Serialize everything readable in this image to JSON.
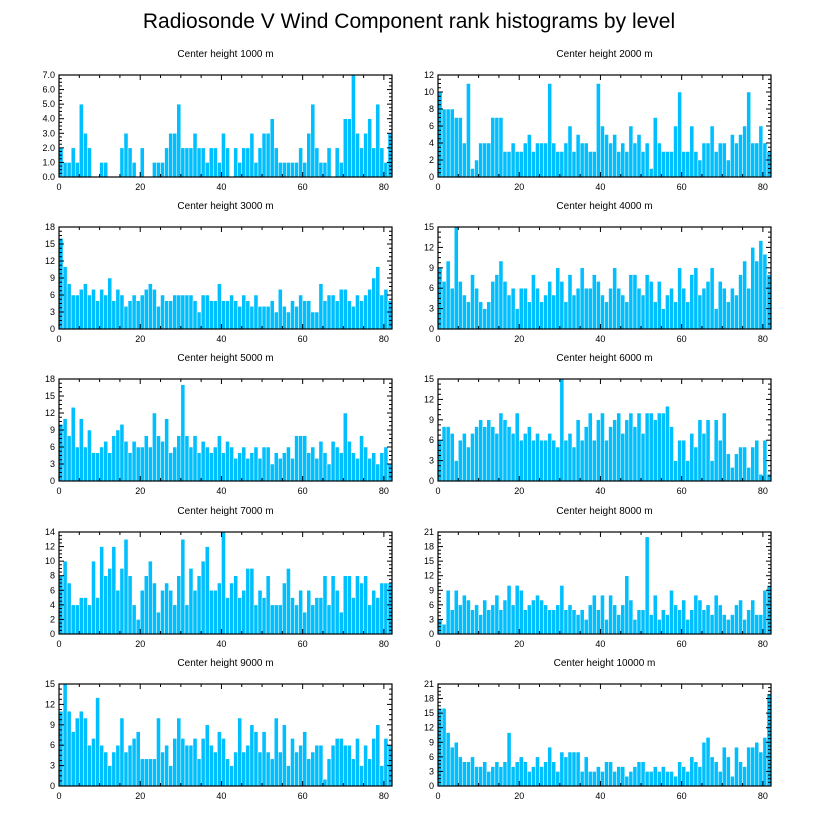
{
  "figure": {
    "title": "Radiosonde V Wind Component rank histograms by level",
    "bar_color": "#00bfff",
    "bar_edge_color": "#ffffff"
  },
  "chart_data": [
    {
      "type": "bar",
      "title": "Center height 1000 m",
      "xlim": [
        0,
        82
      ],
      "ylim": [
        0,
        7
      ],
      "xticks": [
        0,
        20,
        40,
        60,
        80
      ],
      "yticks": [
        0,
        1,
        2,
        3,
        4,
        5,
        6,
        7
      ],
      "ytick_labels": [
        "0.0",
        "1.0",
        "2.0",
        "3.0",
        "4.0",
        "5.0",
        "6.0",
        "7.0"
      ],
      "values": [
        2,
        1,
        1,
        2,
        1,
        5,
        3,
        2,
        0,
        0,
        1,
        1,
        0,
        0,
        0,
        2,
        3,
        2,
        1,
        0,
        2,
        0,
        0,
        1,
        1,
        1,
        2,
        3,
        3,
        5,
        2,
        2,
        2,
        3,
        2,
        2,
        1,
        2,
        2,
        1,
        3,
        2,
        0,
        2,
        1,
        2,
        2,
        3,
        1,
        2,
        3,
        3,
        4,
        2,
        1,
        1,
        1,
        1,
        1,
        2,
        1,
        3,
        5,
        2,
        1,
        1,
        2,
        0,
        2,
        1,
        4,
        4,
        7,
        3,
        2,
        3,
        4,
        2,
        5,
        2,
        1,
        3
      ]
    },
    {
      "type": "bar",
      "title": "Center height 2000 m",
      "xlim": [
        0,
        82
      ],
      "ylim": [
        0,
        12
      ],
      "xticks": [
        0,
        20,
        40,
        60,
        80
      ],
      "yticks": [
        0,
        2,
        4,
        6,
        8,
        10,
        12
      ],
      "ytick_labels": [
        "0",
        "2",
        "4",
        "6",
        "8",
        "10",
        "12"
      ],
      "values": [
        10,
        8,
        8,
        8,
        7,
        7,
        4,
        11,
        1,
        2,
        4,
        4,
        4,
        7,
        7,
        7,
        3,
        3,
        4,
        3,
        3,
        4,
        5,
        3,
        4,
        4,
        4,
        11,
        4,
        3,
        3,
        4,
        6,
        3,
        5,
        4,
        4,
        3,
        3,
        11,
        6,
        5,
        4,
        5,
        3,
        4,
        3,
        6,
        4,
        5,
        3,
        4,
        1,
        7,
        4,
        3,
        3,
        3,
        6,
        10,
        3,
        3,
        6,
        3,
        2,
        4,
        4,
        6,
        3,
        4,
        4,
        2,
        5,
        4,
        5,
        6,
        10,
        4,
        4,
        6,
        4,
        3
      ]
    },
    {
      "type": "bar",
      "title": "Center height 3000 m",
      "xlim": [
        0,
        82
      ],
      "ylim": [
        0,
        18
      ],
      "xticks": [
        0,
        20,
        40,
        60,
        80
      ],
      "yticks": [
        0,
        3,
        6,
        9,
        12,
        15,
        18
      ],
      "ytick_labels": [
        "0",
        "3",
        "6",
        "9",
        "12",
        "15",
        "18"
      ],
      "values": [
        16,
        11,
        8,
        6,
        6,
        7,
        8,
        6,
        7,
        5,
        7,
        6,
        9,
        5,
        7,
        6,
        4,
        5,
        6,
        5,
        6,
        7,
        8,
        7,
        4,
        6,
        5,
        5,
        6,
        6,
        6,
        6,
        6,
        5,
        3,
        6,
        6,
        5,
        5,
        8,
        5,
        5,
        6,
        5,
        4,
        6,
        5,
        4,
        6,
        4,
        4,
        4,
        5,
        3,
        7,
        4,
        3,
        5,
        4,
        6,
        5,
        5,
        3,
        3,
        8,
        5,
        6,
        6,
        5,
        7,
        7,
        5,
        4,
        6,
        5,
        6,
        7,
        9,
        11,
        6,
        7,
        5
      ]
    },
    {
      "type": "bar",
      "title": "Center height 4000 m",
      "xlim": [
        0,
        82
      ],
      "ylim": [
        0,
        15
      ],
      "xticks": [
        0,
        20,
        40,
        60,
        80
      ],
      "yticks": [
        0,
        3,
        6,
        9,
        12,
        15
      ],
      "ytick_labels": [
        "0",
        "3",
        "6",
        "9",
        "12",
        "15"
      ],
      "values": [
        9,
        7,
        10,
        6,
        15,
        7,
        5,
        4,
        8,
        6,
        4,
        3,
        4,
        7,
        8,
        10,
        7,
        5,
        6,
        3,
        6,
        6,
        4,
        8,
        6,
        4,
        5,
        7,
        5,
        9,
        7,
        4,
        8,
        5,
        6,
        9,
        6,
        6,
        8,
        7,
        5,
        4,
        6,
        9,
        6,
        5,
        4,
        8,
        8,
        6,
        5,
        8,
        7,
        4,
        7,
        3,
        5,
        6,
        4,
        9,
        6,
        4,
        8,
        9,
        5,
        6,
        7,
        9,
        3,
        7,
        6,
        4,
        6,
        5,
        8,
        10,
        6,
        12,
        10,
        13,
        11,
        8
      ]
    },
    {
      "type": "bar",
      "title": "Center height 5000 m",
      "xlim": [
        0,
        82
      ],
      "ylim": [
        0,
        18
      ],
      "xticks": [
        0,
        20,
        40,
        60,
        80
      ],
      "yticks": [
        0,
        3,
        6,
        9,
        12,
        15,
        18
      ],
      "ytick_labels": [
        "0",
        "3",
        "6",
        "9",
        "12",
        "15",
        "18"
      ],
      "values": [
        10,
        11,
        8,
        13,
        6,
        11,
        6,
        9,
        5,
        5,
        6,
        7,
        5,
        8,
        9,
        10,
        7,
        5,
        7,
        6,
        6,
        8,
        6,
        12,
        8,
        7,
        11,
        5,
        6,
        8,
        17,
        8,
        6,
        8,
        5,
        7,
        6,
        5,
        6,
        8,
        5,
        7,
        6,
        4,
        5,
        6,
        4,
        5,
        6,
        4,
        6,
        6,
        3,
        5,
        4,
        5,
        6,
        4,
        8,
        8,
        8,
        5,
        6,
        4,
        7,
        5,
        3,
        7,
        6,
        5,
        12,
        7,
        5,
        4,
        8,
        6,
        4,
        5,
        3,
        5,
        6,
        3
      ]
    },
    {
      "type": "bar",
      "title": "Center height 6000 m",
      "xlim": [
        0,
        82
      ],
      "ylim": [
        0,
        15
      ],
      "xticks": [
        0,
        20,
        40,
        60,
        80
      ],
      "yticks": [
        0,
        3,
        6,
        9,
        12,
        15
      ],
      "ytick_labels": [
        "0",
        "3",
        "6",
        "9",
        "12",
        "15"
      ],
      "values": [
        6,
        8,
        8,
        7,
        3,
        6,
        7,
        5,
        7,
        8,
        9,
        8,
        9,
        8,
        7,
        10,
        9,
        8,
        7,
        10,
        6,
        7,
        8,
        6,
        7,
        6,
        6,
        7,
        6,
        5,
        15,
        6,
        7,
        5,
        9,
        6,
        8,
        10,
        6,
        9,
        10,
        6,
        8,
        9,
        10,
        7,
        9,
        10,
        8,
        10,
        7,
        10,
        10,
        9,
        10,
        10,
        11,
        8,
        3,
        6,
        6,
        3,
        7,
        5,
        9,
        7,
        9,
        3,
        9,
        6,
        10,
        4,
        2,
        4,
        5,
        5,
        2,
        5,
        6,
        1,
        6,
        1
      ]
    },
    {
      "type": "bar",
      "title": "Center height 7000 m",
      "xlim": [
        0,
        82
      ],
      "ylim": [
        0,
        14
      ],
      "xticks": [
        0,
        20,
        40,
        60,
        80
      ],
      "yticks": [
        0,
        2,
        4,
        6,
        8,
        10,
        12,
        14
      ],
      "ytick_labels": [
        "0",
        "2",
        "4",
        "6",
        "8",
        "10",
        "12",
        "14"
      ],
      "values": [
        8,
        10,
        7,
        4,
        4,
        5,
        5,
        4,
        10,
        5,
        12,
        8,
        9,
        12,
        6,
        9,
        13,
        8,
        4,
        2,
        6,
        8,
        10,
        7,
        3,
        6,
        7,
        6,
        4,
        8,
        13,
        4,
        9,
        6,
        8,
        10,
        12,
        6,
        6,
        7,
        14,
        5,
        7,
        8,
        5,
        6,
        9,
        9,
        4,
        6,
        5,
        8,
        4,
        4,
        4,
        7,
        9,
        5,
        4,
        6,
        3,
        6,
        4,
        5,
        5,
        8,
        4,
        8,
        6,
        3,
        8,
        8,
        5,
        8,
        7,
        8,
        4,
        6,
        5,
        7,
        7,
        7
      ]
    },
    {
      "type": "bar",
      "title": "Center height 8000 m",
      "xlim": [
        0,
        82
      ],
      "ylim": [
        0,
        21
      ],
      "xticks": [
        0,
        20,
        40,
        60,
        80
      ],
      "yticks": [
        0,
        3,
        6,
        9,
        12,
        15,
        18,
        21
      ],
      "ytick_labels": [
        "0",
        "3",
        "6",
        "9",
        "12",
        "15",
        "18",
        "21"
      ],
      "values": [
        3,
        2,
        9,
        5,
        9,
        6,
        8,
        7,
        5,
        6,
        4,
        7,
        5,
        6,
        8,
        5,
        7,
        10,
        6,
        10,
        9,
        5,
        6,
        7,
        8,
        7,
        6,
        5,
        5,
        6,
        10,
        5,
        6,
        5,
        4,
        5,
        3,
        6,
        8,
        5,
        8,
        3,
        8,
        6,
        4,
        6,
        12,
        7,
        3,
        5,
        5,
        20,
        4,
        8,
        3,
        5,
        4,
        9,
        6,
        5,
        7,
        3,
        5,
        8,
        7,
        5,
        6,
        4,
        8,
        6,
        4,
        3,
        4,
        6,
        7,
        3,
        5,
        7,
        4,
        4,
        9,
        10
      ]
    },
    {
      "type": "bar",
      "title": "Center height 9000 m",
      "xlim": [
        0,
        82
      ],
      "ylim": [
        0,
        15
      ],
      "xticks": [
        0,
        20,
        40,
        60,
        80
      ],
      "yticks": [
        0,
        3,
        6,
        9,
        12,
        15
      ],
      "ytick_labels": [
        "0",
        "3",
        "6",
        "9",
        "12",
        "15"
      ],
      "values": [
        11,
        15,
        11,
        8,
        10,
        11,
        10,
        6,
        7,
        13,
        6,
        5,
        3,
        5,
        6,
        10,
        5,
        6,
        7,
        8,
        4,
        4,
        4,
        4,
        10,
        5,
        6,
        3,
        7,
        10,
        7,
        6,
        6,
        7,
        4,
        7,
        9,
        6,
        5,
        8,
        7,
        4,
        3,
        5,
        10,
        5,
        6,
        9,
        8,
        5,
        8,
        5,
        4,
        10,
        5,
        9,
        3,
        7,
        5,
        6,
        8,
        4,
        5,
        6,
        6,
        1,
        4,
        6,
        7,
        7,
        6,
        6,
        4,
        7,
        3,
        6,
        4,
        7,
        9,
        3,
        7,
        6
      ]
    },
    {
      "type": "bar",
      "title": "Center height 10000 m",
      "xlim": [
        0,
        82
      ],
      "ylim": [
        0,
        21
      ],
      "xticks": [
        0,
        20,
        40,
        60,
        80
      ],
      "yticks": [
        0,
        3,
        6,
        9,
        12,
        15,
        18,
        21
      ],
      "ytick_labels": [
        "0",
        "3",
        "6",
        "9",
        "12",
        "15",
        "18",
        "21"
      ],
      "values": [
        16,
        16,
        11,
        8,
        9,
        6,
        5,
        5,
        6,
        4,
        4,
        5,
        3,
        4,
        5,
        4,
        5,
        11,
        4,
        5,
        6,
        5,
        3,
        4,
        6,
        4,
        5,
        8,
        5,
        3,
        7,
        6,
        7,
        7,
        7,
        3,
        6,
        3,
        3,
        4,
        3,
        5,
        5,
        3,
        4,
        4,
        2,
        3,
        4,
        5,
        5,
        3,
        3,
        4,
        3,
        4,
        3,
        3,
        2,
        5,
        4,
        3,
        6,
        5,
        4,
        9,
        10,
        6,
        5,
        3,
        8,
        6,
        2,
        8,
        5,
        4,
        8,
        8,
        9,
        7,
        10,
        19
      ]
    }
  ]
}
